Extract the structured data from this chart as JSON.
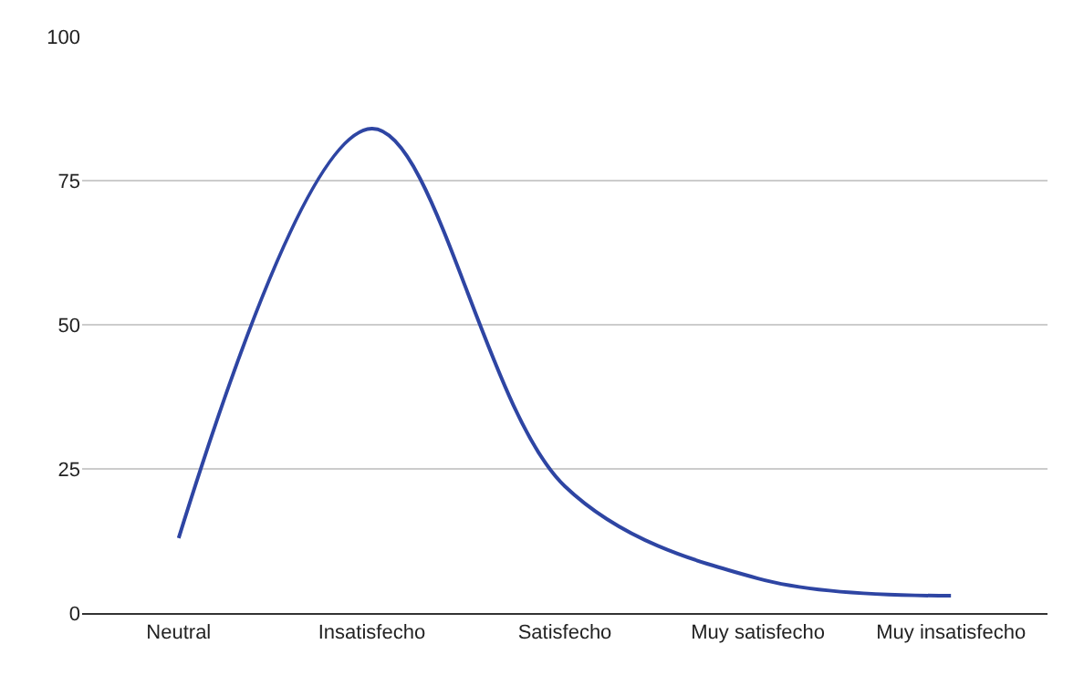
{
  "chart_data": {
    "type": "line",
    "categories": [
      "Neutral",
      "Insatisfecho",
      "Satisfecho",
      "Muy satisfecho",
      "Muy insatisfecho"
    ],
    "series": [
      {
        "color": "#2e45a3",
        "values": [
          13,
          84,
          22,
          6,
          3
        ]
      }
    ],
    "ylim": [
      0,
      100
    ],
    "yticks": [
      0,
      25,
      50,
      75,
      100
    ],
    "grid": "y",
    "legend": false,
    "marker": "none",
    "line_style": "solid"
  }
}
